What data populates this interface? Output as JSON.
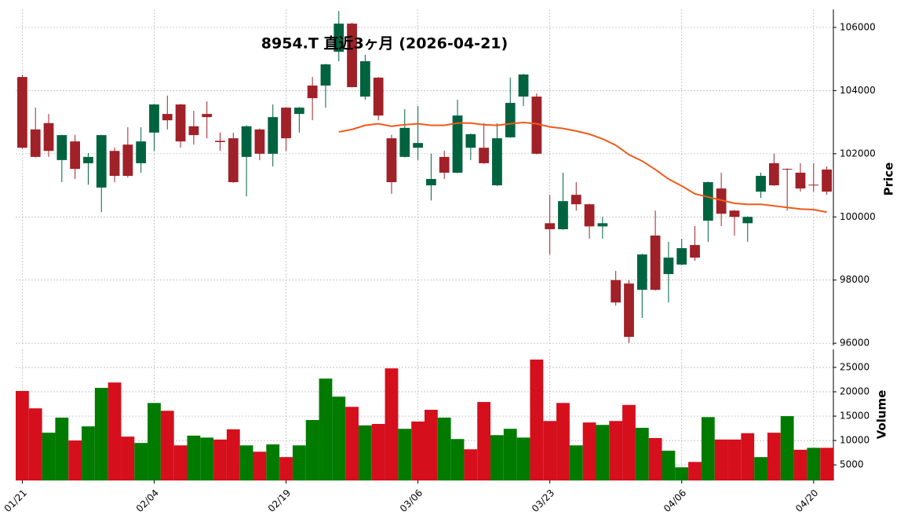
{
  "chart_data": {
    "type": "candlestick",
    "title": "8954.T 直近3ヶ月 (2026-04-21)",
    "ylabel": "Price",
    "categories": [
      "01/21",
      null,
      null,
      null,
      null,
      null,
      null,
      null,
      null,
      null,
      "02/04",
      null,
      null,
      null,
      null,
      null,
      null,
      null,
      null,
      null,
      "02/19",
      null,
      null,
      null,
      null,
      null,
      null,
      null,
      null,
      null,
      "03/06",
      null,
      null,
      null,
      null,
      null,
      null,
      null,
      null,
      null,
      "03/23",
      null,
      null,
      null,
      null,
      null,
      null,
      null,
      null,
      null,
      "04/06",
      null,
      null,
      null,
      null,
      null,
      null,
      null,
      null,
      null,
      "04/20",
      null
    ],
    "open": [
      104430,
      102770,
      102970,
      101800,
      102390,
      101700,
      100930,
      102090,
      102290,
      101700,
      102670,
      103260,
      103560,
      102870,
      103260,
      102410,
      102490,
      101900,
      102770,
      102000,
      103460,
      103260,
      104160,
      104160,
      105230,
      106120,
      103810,
      104410,
      102490,
      101900,
      102190,
      101000,
      101900,
      101400,
      102190,
      102190,
      101000,
      102520,
      103810,
      103810,
      99800,
      99610,
      100700,
      100400,
      99700,
      98000,
      97890,
      97690,
      99410,
      98190,
      98490,
      99110,
      99880,
      100900,
      100200,
      99800,
      100800,
      101700,
      101520,
      101400,
      101020,
      101500
    ],
    "high": [
      104500,
      103460,
      103260,
      102600,
      102600,
      102020,
      102600,
      102200,
      102840,
      102840,
      103580,
      103840,
      103580,
      103360,
      103660,
      102670,
      102670,
      102900,
      102800,
      103560,
      103480,
      103480,
      104430,
      104850,
      106520,
      106150,
      105130,
      104430,
      102600,
      103410,
      103510,
      102000,
      102100,
      103710,
      102640,
      102970,
      102970,
      104410,
      104530,
      103910,
      100700,
      101400,
      101100,
      100420,
      100000,
      98290,
      98000,
      98830,
      100200,
      99210,
      99310,
      99710,
      101120,
      101400,
      100220,
      100020,
      101400,
      102000,
      101540,
      101700,
      101700,
      101600
    ],
    "low": [
      102150,
      101880,
      101900,
      101100,
      101200,
      101020,
      100150,
      101100,
      101250,
      101400,
      102090,
      102770,
      102190,
      102290,
      102490,
      102090,
      101080,
      100650,
      101800,
      101600,
      102090,
      102670,
      103060,
      103460,
      104930,
      104100,
      103710,
      103060,
      100730,
      101880,
      101800,
      100520,
      101200,
      101380,
      101800,
      101680,
      100980,
      102500,
      103510,
      101980,
      98810,
      99590,
      100200,
      99310,
      99310,
      97190,
      96000,
      96800,
      97670,
      97290,
      98470,
      98610,
      99210,
      99710,
      99410,
      99210,
      100600,
      100980,
      100200,
      100800,
      100800,
      100700
    ],
    "close": [
      102190,
      101900,
      102090,
      102590,
      101520,
      101900,
      102590,
      101300,
      101300,
      102390,
      103560,
      103060,
      102390,
      102590,
      103160,
      102370,
      101100,
      102870,
      102000,
      103160,
      102490,
      103460,
      103760,
      104830,
      106120,
      104110,
      104930,
      103210,
      101100,
      102820,
      102340,
      101200,
      101400,
      103210,
      102620,
      101700,
      102490,
      103610,
      104510,
      102000,
      99610,
      100500,
      100400,
      99700,
      99800,
      97290,
      96200,
      98810,
      97690,
      98710,
      99010,
      98710,
      101100,
      100100,
      100000,
      100000,
      101300,
      101000,
      101500,
      100900,
      101000,
      100800
    ],
    "up_color": "#006340",
    "down_color": "#a02128",
    "ylim": [
      95930,
      106570
    ],
    "yticks": [
      96000,
      98000,
      100000,
      102000,
      104000,
      106000
    ],
    "grid": true,
    "moving_average": {
      "color": "#f05a1a",
      "values": [
        null,
        null,
        null,
        null,
        null,
        null,
        null,
        null,
        null,
        null,
        null,
        null,
        null,
        null,
        null,
        null,
        null,
        null,
        null,
        null,
        null,
        null,
        null,
        null,
        102690,
        102770,
        102900,
        102950,
        102870,
        102920,
        102950,
        102900,
        102900,
        102970,
        102970,
        102920,
        102900,
        102950,
        102990,
        102950,
        102850,
        102800,
        102720,
        102620,
        102470,
        102270,
        101970,
        101770,
        101500,
        101200,
        100980,
        100730,
        100630,
        100530,
        100430,
        100400,
        100400,
        100350,
        100300,
        100250,
        100230,
        100150
      ]
    },
    "volume": {
      "ylabel": "Volume",
      "ylim": [
        1800,
        28700
      ],
      "yticks": [
        5000,
        10000,
        15000,
        20000,
        25000
      ],
      "values": [
        20160,
        16600,
        11600,
        14700,
        10000,
        12900,
        20800,
        21900,
        10800,
        9500,
        17700,
        16100,
        9000,
        11000,
        10600,
        10200,
        12300,
        9000,
        7700,
        9200,
        6600,
        9000,
        14200,
        22700,
        19000,
        16900,
        13100,
        13400,
        24800,
        12400,
        13900,
        16300,
        14700,
        10300,
        8200,
        17900,
        11100,
        12400,
        10600,
        26600,
        14000,
        17700,
        9000,
        13700,
        13200,
        14000,
        17300,
        12600,
        10500,
        7900,
        4500,
        5600,
        14800,
        10200,
        10200,
        11500,
        6600,
        11600,
        15000,
        8100,
        8500,
        8500
      ],
      "colors": [
        "#d50f1c",
        "#d50f1c",
        "#007b00",
        "#007b00",
        "#d50f1c",
        "#007b00",
        "#007b00",
        "#d50f1c",
        "#d50f1c",
        "#007b00",
        "#007b00",
        "#d50f1c",
        "#d50f1c",
        "#007b00",
        "#007b00",
        "#d50f1c",
        "#d50f1c",
        "#007b00",
        "#d50f1c",
        "#007b00",
        "#d50f1c",
        "#007b00",
        "#007b00",
        "#007b00",
        "#007b00",
        "#d50f1c",
        "#007b00",
        "#d50f1c",
        "#d50f1c",
        "#007b00",
        "#d50f1c",
        "#d50f1c",
        "#007b00",
        "#007b00",
        "#d50f1c",
        "#d50f1c",
        "#007b00",
        "#007b00",
        "#007b00",
        "#d50f1c",
        "#d50f1c",
        "#d50f1c",
        "#007b00",
        "#d50f1c",
        "#007b00",
        "#d50f1c",
        "#d50f1c",
        "#007b00",
        "#d50f1c",
        "#007b00",
        "#007b00",
        "#d50f1c",
        "#007b00",
        "#d50f1c",
        "#d50f1c",
        "#d50f1c",
        "#007b00",
        "#d50f1c",
        "#007b00",
        "#d50f1c",
        "#007b00",
        "#d50f1c"
      ]
    }
  }
}
